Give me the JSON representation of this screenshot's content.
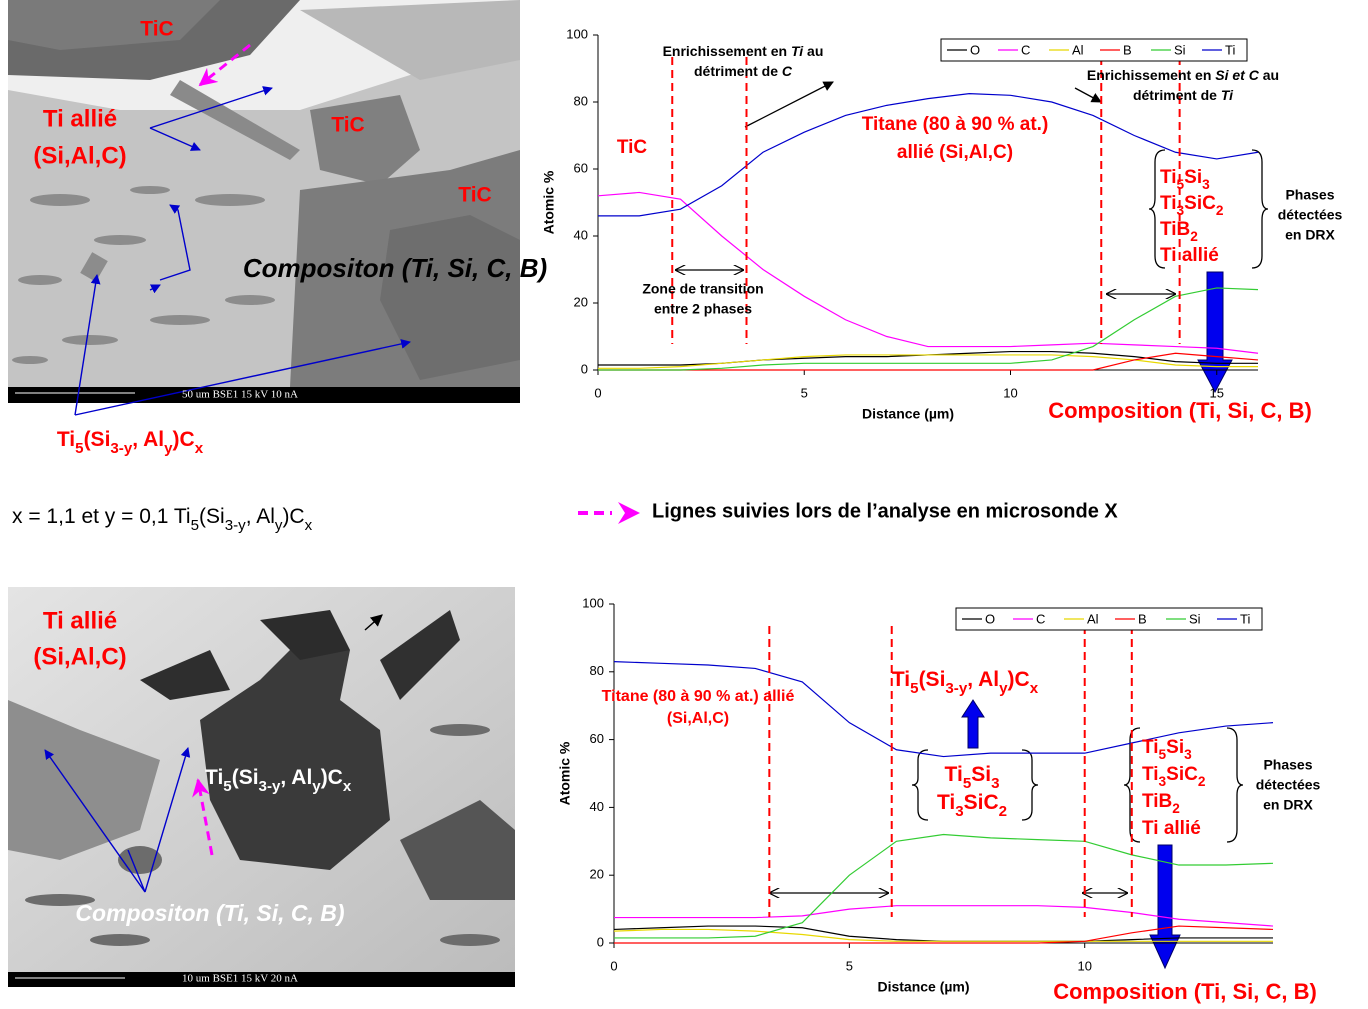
{
  "top_image": {
    "labels": [
      "TiC",
      "Ti allié",
      "(Si,Al,C)",
      "TiC",
      "TiC",
      "Compositon (Ti, Si, C, B)"
    ],
    "formula": [
      "Ti",
      "5",
      "(Si",
      "3-y",
      ", Al",
      "y",
      ")C",
      "x"
    ],
    "scale_bar": "50 um   BSE1      15 kV  10 nA"
  },
  "caption": {
    "text": [
      "x = 1,1 et y = 0,1 Ti",
      "5",
      "(Si",
      "3-y",
      ", Al",
      "y",
      ")C",
      "x"
    ],
    "legend": "Lignes suivies lors de l’analyse en microsonde X"
  },
  "bottom_image": {
    "labels": [
      "Ti allié",
      "(Si,Al,C)",
      "Compositon (Ti, Si, C, B)"
    ],
    "formula": [
      "Ti",
      "5",
      "(Si",
      "3-y",
      ", Al",
      "y",
      ")C",
      "x"
    ],
    "scale_bar": "10 um   BSE1      15 kV  20 nA"
  },
  "chart_data": [
    {
      "type": "line",
      "xlabel": "Distance (µm)",
      "ylabel": "Atomic %",
      "x": [
        0,
        1,
        2,
        3,
        4,
        5,
        6,
        7,
        8,
        9,
        10,
        11,
        12,
        13,
        14,
        15,
        16
      ],
      "xlim": [
        0,
        16
      ],
      "xticks": [
        0,
        5,
        10,
        15
      ],
      "ylim": [
        0,
        100
      ],
      "yticks": [
        0,
        20,
        40,
        60,
        80,
        100
      ],
      "legend": "top-right",
      "vlines": [
        1.8,
        3.6,
        12.2,
        14.1
      ],
      "series": [
        {
          "name": "O",
          "color": "#000000",
          "values": [
            1.5,
            1.5,
            1.5,
            2,
            3,
            3.5,
            4,
            4,
            4.5,
            5,
            5.5,
            5.5,
            5,
            4,
            2.5,
            2,
            2
          ]
        },
        {
          "name": "C",
          "color": "#ff00ff",
          "values": [
            52,
            53,
            51,
            40,
            30,
            22,
            15,
            10,
            7,
            7,
            7,
            7.5,
            8,
            7.5,
            7,
            6.5,
            5
          ]
        },
        {
          "name": "Al",
          "color": "#e8d800",
          "values": [
            0.5,
            0.5,
            1,
            2,
            3,
            4,
            4.5,
            4.5,
            4.5,
            4.5,
            4.5,
            4.5,
            4,
            3,
            1.5,
            1,
            1
          ]
        },
        {
          "name": "B",
          "color": "#ff0000",
          "values": [
            0,
            0,
            0,
            0,
            0,
            0,
            0,
            0,
            0,
            0,
            0,
            0,
            0,
            3,
            5,
            4,
            3
          ]
        },
        {
          "name": "Si",
          "color": "#33cc33",
          "values": [
            0,
            0,
            0,
            0.5,
            1.5,
            2,
            2,
            2,
            2,
            2,
            2,
            3,
            7,
            15,
            22,
            24.5,
            24
          ]
        },
        {
          "name": "Ti",
          "color": "#0000cc",
          "values": [
            46,
            46,
            48,
            55,
            65,
            71,
            76,
            79,
            81,
            82.5,
            82,
            80,
            76,
            70,
            65,
            63,
            65
          ]
        }
      ],
      "annotations": {
        "ti_enrich": [
          [
            "Enrichissement en ",
            "Ti",
            " au"
          ],
          [
            "détriment de ",
            "C"
          ]
        ],
        "si_enrich": [
          [
            "Enrichissement en ",
            "Si et C",
            " au"
          ],
          [
            "détriment de ",
            "Ti"
          ]
        ],
        "tic": "TiC",
        "titane": [
          "Titane (80 à 90 % at.)",
          "allié (Si,Al,C)"
        ],
        "phases": [
          [
            "Ti",
            "5",
            "Si",
            "3"
          ],
          [
            "Ti",
            "3",
            "SiC",
            "2"
          ],
          [
            "TiB",
            "2"
          ],
          [
            "Ti allié"
          ]
        ],
        "drx": [
          "Phases",
          "détectées",
          "en DRX"
        ],
        "zone": [
          "Zone de transition",
          "entre 2 phases"
        ],
        "composition": "Composition (Ti, Si, C, B)"
      }
    },
    {
      "type": "line",
      "xlabel": "Distance (µm)",
      "ylabel": "Atomic %",
      "x": [
        0,
        1,
        2,
        3,
        4,
        5,
        6,
        7,
        8,
        9,
        10,
        11,
        12,
        13,
        14
      ],
      "xlim": [
        0,
        14
      ],
      "xticks": [
        0,
        5,
        10
      ],
      "ylim": [
        0,
        100
      ],
      "yticks": [
        0,
        20,
        40,
        60,
        80,
        100
      ],
      "legend": "top-right",
      "vlines": [
        3.3,
        5.9,
        10,
        11
      ],
      "series": [
        {
          "name": "O",
          "color": "#000000",
          "values": [
            4,
            4.5,
            5,
            5,
            4.5,
            2,
            1,
            0.5,
            0.5,
            0.5,
            0.5,
            1,
            1.5,
            1.5,
            1.5
          ]
        },
        {
          "name": "C",
          "color": "#ff00ff",
          "values": [
            7.5,
            7.5,
            7.5,
            7.5,
            8,
            10,
            11,
            11,
            11,
            11,
            10.5,
            9,
            7,
            6,
            5
          ]
        },
        {
          "name": "Al",
          "color": "#e8d800",
          "values": [
            3.5,
            4,
            4,
            3.5,
            2.5,
            1,
            0.5,
            0.5,
            0.5,
            0.5,
            0.5,
            0.5,
            0.5,
            0.5,
            0.5
          ]
        },
        {
          "name": "B",
          "color": "#ff0000",
          "values": [
            0,
            0,
            0,
            0,
            0,
            0,
            0,
            0,
            0,
            0,
            0.5,
            3,
            5,
            4.5,
            4
          ]
        },
        {
          "name": "Si",
          "color": "#33cc33",
          "values": [
            1.5,
            1.5,
            1.5,
            2,
            6,
            20,
            30,
            32,
            31,
            30.5,
            30,
            26,
            23,
            23,
            23.5
          ]
        },
        {
          "name": "Ti",
          "color": "#0000cc",
          "values": [
            83,
            82.5,
            82,
            81,
            77,
            65,
            57,
            55,
            56,
            56,
            56,
            59,
            62,
            64,
            65
          ]
        }
      ],
      "annotations": {
        "titane": [
          "Titane (80 à 90 % at.) allié",
          "(Si,Al,C)"
        ],
        "formula": [
          "Ti",
          "5",
          "(Si",
          "3-y",
          ", Al",
          "y",
          ")C",
          "x"
        ],
        "phases_mid": [
          [
            "Ti",
            "5",
            "Si",
            "3"
          ],
          [
            "Ti",
            "3",
            "SiC",
            "2"
          ]
        ],
        "phases": [
          [
            "Ti",
            "5",
            "Si",
            "3"
          ],
          [
            "Ti",
            "3",
            "SiC",
            "2"
          ],
          [
            "TiB",
            "2"
          ],
          [
            "Ti allié"
          ]
        ],
        "drx": [
          "Phases",
          "détectées",
          "en DRX"
        ],
        "composition": "Composition (Ti, Si, C, B)"
      }
    }
  ]
}
